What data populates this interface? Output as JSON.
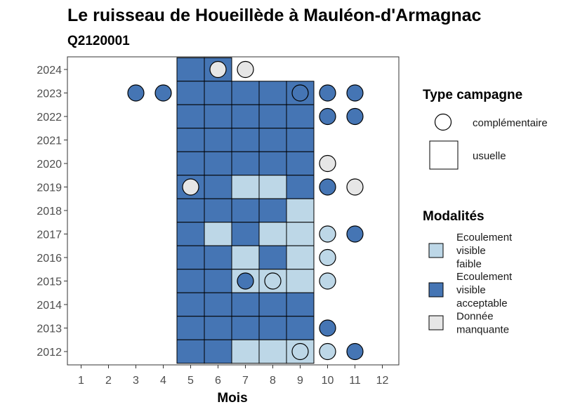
{
  "chart_data": {
    "type": "heatmap",
    "title": "Le ruisseau de Houeillède à Mauléon-d'Armagnac",
    "subtitle": "Q2120001",
    "xlabel": "Mois",
    "ylabel": "",
    "x_ticks": [
      1,
      2,
      3,
      4,
      5,
      6,
      7,
      8,
      9,
      10,
      11,
      12
    ],
    "y_ticks": [
      2012,
      2013,
      2014,
      2015,
      2016,
      2017,
      2018,
      2019,
      2020,
      2021,
      2022,
      2023,
      2024
    ],
    "xlim": [
      0.5,
      12.5
    ],
    "ylim": [
      2011.5,
      2024.5
    ],
    "grid": false,
    "colors": {
      "Ecoulement visible faible": "#bdd7e7",
      "Ecoulement visible acceptable": "#4575b4",
      "Donnée manquante": "#e6e6e6"
    },
    "legend_shape": {
      "title": "Type campagne",
      "entries": [
        {
          "label": "complémentaire",
          "shape": "circle"
        },
        {
          "label": "usuelle",
          "shape": "square"
        }
      ]
    },
    "legend_fill": {
      "title": "Modalités",
      "entries": [
        {
          "key": "faible",
          "label_lines": [
            "Ecoulement",
            "visible",
            "faible"
          ],
          "color": "#bdd7e7"
        },
        {
          "key": "acceptable",
          "label_lines": [
            "Ecoulement",
            "visible",
            "acceptable"
          ],
          "color": "#4575b4"
        },
        {
          "key": "manquante",
          "label_lines": [
            "Donnée",
            "manquante"
          ],
          "color": "#e6e6e6"
        }
      ]
    },
    "observations": [
      {
        "year": 2024,
        "month": 5,
        "type": "usuelle",
        "value": "acceptable"
      },
      {
        "year": 2024,
        "month": 6,
        "type": "usuelle",
        "value": "acceptable"
      },
      {
        "year": 2024,
        "month": 6,
        "type": "complémentaire",
        "value": "manquante"
      },
      {
        "year": 2024,
        "month": 7,
        "type": "complémentaire",
        "value": "manquante"
      },
      {
        "year": 2023,
        "month": 3,
        "type": "complémentaire",
        "value": "acceptable"
      },
      {
        "year": 2023,
        "month": 4,
        "type": "complémentaire",
        "value": "acceptable"
      },
      {
        "year": 2023,
        "month": 5,
        "type": "usuelle",
        "value": "acceptable"
      },
      {
        "year": 2023,
        "month": 6,
        "type": "usuelle",
        "value": "acceptable"
      },
      {
        "year": 2023,
        "month": 7,
        "type": "usuelle",
        "value": "acceptable"
      },
      {
        "year": 2023,
        "month": 8,
        "type": "usuelle",
        "value": "acceptable"
      },
      {
        "year": 2023,
        "month": 9,
        "type": "usuelle",
        "value": "acceptable"
      },
      {
        "year": 2023,
        "month": 9,
        "type": "complémentaire",
        "value": "acceptable"
      },
      {
        "year": 2023,
        "month": 10,
        "type": "complémentaire",
        "value": "acceptable"
      },
      {
        "year": 2023,
        "month": 11,
        "type": "complémentaire",
        "value": "acceptable"
      },
      {
        "year": 2022,
        "month": 5,
        "type": "usuelle",
        "value": "acceptable"
      },
      {
        "year": 2022,
        "month": 6,
        "type": "usuelle",
        "value": "acceptable"
      },
      {
        "year": 2022,
        "month": 7,
        "type": "usuelle",
        "value": "acceptable"
      },
      {
        "year": 2022,
        "month": 8,
        "type": "usuelle",
        "value": "acceptable"
      },
      {
        "year": 2022,
        "month": 9,
        "type": "usuelle",
        "value": "acceptable"
      },
      {
        "year": 2022,
        "month": 10,
        "type": "complémentaire",
        "value": "acceptable"
      },
      {
        "year": 2022,
        "month": 11,
        "type": "complémentaire",
        "value": "acceptable"
      },
      {
        "year": 2021,
        "month": 5,
        "type": "usuelle",
        "value": "acceptable"
      },
      {
        "year": 2021,
        "month": 6,
        "type": "usuelle",
        "value": "acceptable"
      },
      {
        "year": 2021,
        "month": 7,
        "type": "usuelle",
        "value": "acceptable"
      },
      {
        "year": 2021,
        "month": 8,
        "type": "usuelle",
        "value": "acceptable"
      },
      {
        "year": 2021,
        "month": 9,
        "type": "usuelle",
        "value": "acceptable"
      },
      {
        "year": 2020,
        "month": 5,
        "type": "usuelle",
        "value": "acceptable"
      },
      {
        "year": 2020,
        "month": 6,
        "type": "usuelle",
        "value": "acceptable"
      },
      {
        "year": 2020,
        "month": 7,
        "type": "usuelle",
        "value": "acceptable"
      },
      {
        "year": 2020,
        "month": 8,
        "type": "usuelle",
        "value": "acceptable"
      },
      {
        "year": 2020,
        "month": 9,
        "type": "usuelle",
        "value": "acceptable"
      },
      {
        "year": 2020,
        "month": 10,
        "type": "complémentaire",
        "value": "manquante"
      },
      {
        "year": 2019,
        "month": 5,
        "type": "usuelle",
        "value": "acceptable"
      },
      {
        "year": 2019,
        "month": 5,
        "type": "complémentaire",
        "value": "manquante"
      },
      {
        "year": 2019,
        "month": 6,
        "type": "usuelle",
        "value": "acceptable"
      },
      {
        "year": 2019,
        "month": 7,
        "type": "usuelle",
        "value": "faible"
      },
      {
        "year": 2019,
        "month": 8,
        "type": "usuelle",
        "value": "faible"
      },
      {
        "year": 2019,
        "month": 9,
        "type": "usuelle",
        "value": "acceptable"
      },
      {
        "year": 2019,
        "month": 10,
        "type": "complémentaire",
        "value": "acceptable"
      },
      {
        "year": 2019,
        "month": 11,
        "type": "complémentaire",
        "value": "manquante"
      },
      {
        "year": 2018,
        "month": 5,
        "type": "usuelle",
        "value": "acceptable"
      },
      {
        "year": 2018,
        "month": 6,
        "type": "usuelle",
        "value": "acceptable"
      },
      {
        "year": 2018,
        "month": 7,
        "type": "usuelle",
        "value": "acceptable"
      },
      {
        "year": 2018,
        "month": 8,
        "type": "usuelle",
        "value": "acceptable"
      },
      {
        "year": 2018,
        "month": 9,
        "type": "usuelle",
        "value": "faible"
      },
      {
        "year": 2017,
        "month": 5,
        "type": "usuelle",
        "value": "acceptable"
      },
      {
        "year": 2017,
        "month": 6,
        "type": "usuelle",
        "value": "faible"
      },
      {
        "year": 2017,
        "month": 7,
        "type": "usuelle",
        "value": "acceptable"
      },
      {
        "year": 2017,
        "month": 8,
        "type": "usuelle",
        "value": "faible"
      },
      {
        "year": 2017,
        "month": 9,
        "type": "usuelle",
        "value": "faible"
      },
      {
        "year": 2017,
        "month": 10,
        "type": "complémentaire",
        "value": "faible"
      },
      {
        "year": 2017,
        "month": 11,
        "type": "complémentaire",
        "value": "acceptable"
      },
      {
        "year": 2016,
        "month": 5,
        "type": "usuelle",
        "value": "acceptable"
      },
      {
        "year": 2016,
        "month": 6,
        "type": "usuelle",
        "value": "acceptable"
      },
      {
        "year": 2016,
        "month": 7,
        "type": "usuelle",
        "value": "faible"
      },
      {
        "year": 2016,
        "month": 8,
        "type": "usuelle",
        "value": "acceptable"
      },
      {
        "year": 2016,
        "month": 9,
        "type": "usuelle",
        "value": "faible"
      },
      {
        "year": 2016,
        "month": 10,
        "type": "complémentaire",
        "value": "faible"
      },
      {
        "year": 2015,
        "month": 5,
        "type": "usuelle",
        "value": "acceptable"
      },
      {
        "year": 2015,
        "month": 6,
        "type": "usuelle",
        "value": "acceptable"
      },
      {
        "year": 2015,
        "month": 7,
        "type": "usuelle",
        "value": "faible"
      },
      {
        "year": 2015,
        "month": 7,
        "type": "complémentaire",
        "value": "acceptable"
      },
      {
        "year": 2015,
        "month": 8,
        "type": "usuelle",
        "value": "faible"
      },
      {
        "year": 2015,
        "month": 8,
        "type": "complémentaire",
        "value": "faible"
      },
      {
        "year": 2015,
        "month": 9,
        "type": "usuelle",
        "value": "faible"
      },
      {
        "year": 2015,
        "month": 10,
        "type": "complémentaire",
        "value": "faible"
      },
      {
        "year": 2014,
        "month": 5,
        "type": "usuelle",
        "value": "acceptable"
      },
      {
        "year": 2014,
        "month": 6,
        "type": "usuelle",
        "value": "acceptable"
      },
      {
        "year": 2014,
        "month": 7,
        "type": "usuelle",
        "value": "acceptable"
      },
      {
        "year": 2014,
        "month": 8,
        "type": "usuelle",
        "value": "acceptable"
      },
      {
        "year": 2014,
        "month": 9,
        "type": "usuelle",
        "value": "acceptable"
      },
      {
        "year": 2013,
        "month": 5,
        "type": "usuelle",
        "value": "acceptable"
      },
      {
        "year": 2013,
        "month": 6,
        "type": "usuelle",
        "value": "acceptable"
      },
      {
        "year": 2013,
        "month": 7,
        "type": "usuelle",
        "value": "acceptable"
      },
      {
        "year": 2013,
        "month": 8,
        "type": "usuelle",
        "value": "acceptable"
      },
      {
        "year": 2013,
        "month": 9,
        "type": "usuelle",
        "value": "acceptable"
      },
      {
        "year": 2013,
        "month": 10,
        "type": "complémentaire",
        "value": "acceptable"
      },
      {
        "year": 2012,
        "month": 5,
        "type": "usuelle",
        "value": "acceptable"
      },
      {
        "year": 2012,
        "month": 6,
        "type": "usuelle",
        "value": "acceptable"
      },
      {
        "year": 2012,
        "month": 7,
        "type": "usuelle",
        "value": "faible"
      },
      {
        "year": 2012,
        "month": 8,
        "type": "usuelle",
        "value": "faible"
      },
      {
        "year": 2012,
        "month": 9,
        "type": "usuelle",
        "value": "faible"
      },
      {
        "year": 2012,
        "month": 9,
        "type": "complémentaire",
        "value": "faible"
      },
      {
        "year": 2012,
        "month": 10,
        "type": "complémentaire",
        "value": "faible"
      },
      {
        "year": 2012,
        "month": 11,
        "type": "complémentaire",
        "value": "acceptable"
      }
    ]
  }
}
